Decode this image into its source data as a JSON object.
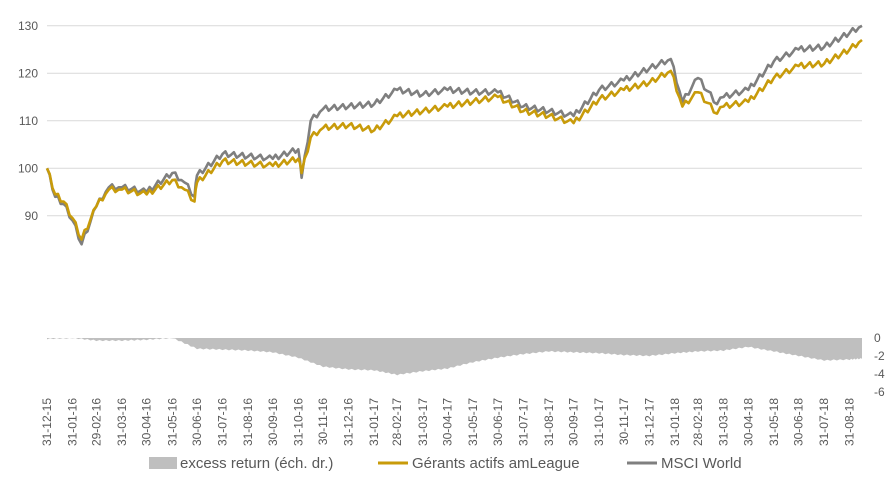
{
  "chart_data": {
    "type": "line",
    "title": "",
    "grid": "horizontal",
    "legend_position": "bottom",
    "colors": {
      "gerants": "#C89B0A",
      "msci": "#7F7F7F",
      "excess": "#BFBFBF",
      "grid": "#D9D9D9",
      "text": "#595959"
    },
    "x_tick_labels": [
      "31-12-15",
      "31-01-16",
      "29-02-16",
      "31-03-16",
      "30-04-16",
      "31-05-16",
      "30-06-16",
      "31-07-16",
      "31-08-16",
      "30-09-16",
      "31-10-16",
      "30-11-16",
      "31-12-16",
      "31-01-17",
      "28-02-17",
      "31-03-17",
      "30-04-17",
      "31-05-17",
      "30-06-17",
      "31-07-17",
      "31-08-17",
      "30-09-17",
      "31-10-17",
      "30-11-17",
      "31-12-17",
      "31-01-18",
      "28-02-18",
      "31-03-18",
      "30-04-18",
      "31-05-18",
      "30-06-18",
      "31-07-18",
      "31-08-18"
    ],
    "y_left": {
      "ticks": [
        "90",
        "100",
        "110",
        "120",
        "130"
      ],
      "range": [
        79,
        131
      ]
    },
    "y_right": {
      "ticks": [
        "0",
        "-2",
        "-4",
        "-6"
      ],
      "range": [
        -6,
        0
      ]
    },
    "series": [
      {
        "name": "excess return (éch. dr.)",
        "kind": "area",
        "axis": "right",
        "x": [
          "31-12-15",
          "31-01-16",
          "29-02-16",
          "31-03-16",
          "30-04-16",
          "31-05-16",
          "30-06-16",
          "31-07-16",
          "31-08-16",
          "30-09-16",
          "31-10-16",
          "30-11-16",
          "31-12-16",
          "31-01-17",
          "28-02-17",
          "31-03-17",
          "30-04-17",
          "31-05-17",
          "30-06-17",
          "31-07-17",
          "31-08-17",
          "30-09-17",
          "31-10-17",
          "30-11-17",
          "31-12-17",
          "31-01-18",
          "28-02-18",
          "31-03-18",
          "30-04-18",
          "31-05-18",
          "30-06-18",
          "31-07-18",
          "31-08-18",
          "15-09-18"
        ],
        "values": [
          -0.1,
          0.0,
          -0.3,
          -0.3,
          -0.2,
          0.0,
          -1.2,
          -1.3,
          -1.4,
          -1.6,
          -2.2,
          -3.2,
          -3.5,
          -3.6,
          -4.1,
          -3.7,
          -3.4,
          -2.7,
          -2.2,
          -1.8,
          -1.5,
          -1.6,
          -1.7,
          -1.9,
          -2.0,
          -1.7,
          -1.5,
          -1.4,
          -1.0,
          -1.5,
          -2.0,
          -2.5,
          -2.4,
          -2.3
        ]
      },
      {
        "name": "Gérants actifs amLeague",
        "kind": "line",
        "axis": "left",
        "x": [
          "31-12-15",
          "10-01-16",
          "20-01-16",
          "31-01-16",
          "11-02-16",
          "29-02-16",
          "15-03-16",
          "31-03-16",
          "30-04-16",
          "31-05-16",
          "15-06-16",
          "27-06-16",
          "30-06-16",
          "31-07-16",
          "31-08-16",
          "30-09-16",
          "31-10-16",
          "04-11-16",
          "15-11-16",
          "30-11-16",
          "31-12-16",
          "31-01-17",
          "28-02-17",
          "31-03-17",
          "30-04-17",
          "31-05-17",
          "30-06-17",
          "31-07-17",
          "31-08-17",
          "30-09-17",
          "31-10-17",
          "30-11-17",
          "31-12-17",
          "26-01-18",
          "09-02-18",
          "28-02-18",
          "23-03-18",
          "31-03-18",
          "30-04-18",
          "31-05-18",
          "30-06-18",
          "31-07-18",
          "31-08-18",
          "15-09-18"
        ],
        "values": [
          100,
          94.5,
          93,
          89.5,
          85,
          92,
          95.5,
          95.5,
          94.5,
          97.5,
          95.5,
          93,
          97,
          101.5,
          101,
          100.5,
          102,
          99,
          106.5,
          108.5,
          109,
          108,
          111,
          112,
          113,
          114,
          115,
          112,
          111,
          109.5,
          114.5,
          116.5,
          118,
          120.5,
          113,
          116,
          111.5,
          113,
          114,
          119,
          121.5,
          122,
          125,
          127
        ]
      },
      {
        "name": "MSCI World",
        "kind": "line",
        "axis": "left",
        "x": [
          "31-12-15",
          "10-01-16",
          "20-01-16",
          "31-01-16",
          "11-02-16",
          "29-02-16",
          "15-03-16",
          "31-03-16",
          "30-04-16",
          "31-05-16",
          "15-06-16",
          "27-06-16",
          "30-06-16",
          "31-07-16",
          "31-08-16",
          "30-09-16",
          "31-10-16",
          "04-11-16",
          "15-11-16",
          "30-11-16",
          "31-12-16",
          "31-01-17",
          "28-02-17",
          "31-03-17",
          "30-04-17",
          "31-05-17",
          "30-06-17",
          "31-07-17",
          "31-08-17",
          "30-09-17",
          "31-10-17",
          "30-11-17",
          "31-12-17",
          "26-01-18",
          "09-02-18",
          "28-02-18",
          "23-03-18",
          "31-03-18",
          "30-04-18",
          "31-05-18",
          "30-06-18",
          "31-07-18",
          "31-08-18",
          "15-09-18"
        ],
        "values": [
          100,
          94,
          92.5,
          89,
          84,
          92,
          96,
          96,
          95,
          99,
          97,
          94,
          98.5,
          103,
          102.5,
          102,
          104,
          98,
          110,
          112.5,
          113,
          113.5,
          116.5,
          115.5,
          116.5,
          116,
          116,
          113,
          112,
          111,
          116.5,
          118.5,
          121,
          123,
          114,
          119,
          113.5,
          115,
          116.5,
          122.5,
          125,
          125.5,
          128.5,
          130
        ]
      }
    ]
  }
}
